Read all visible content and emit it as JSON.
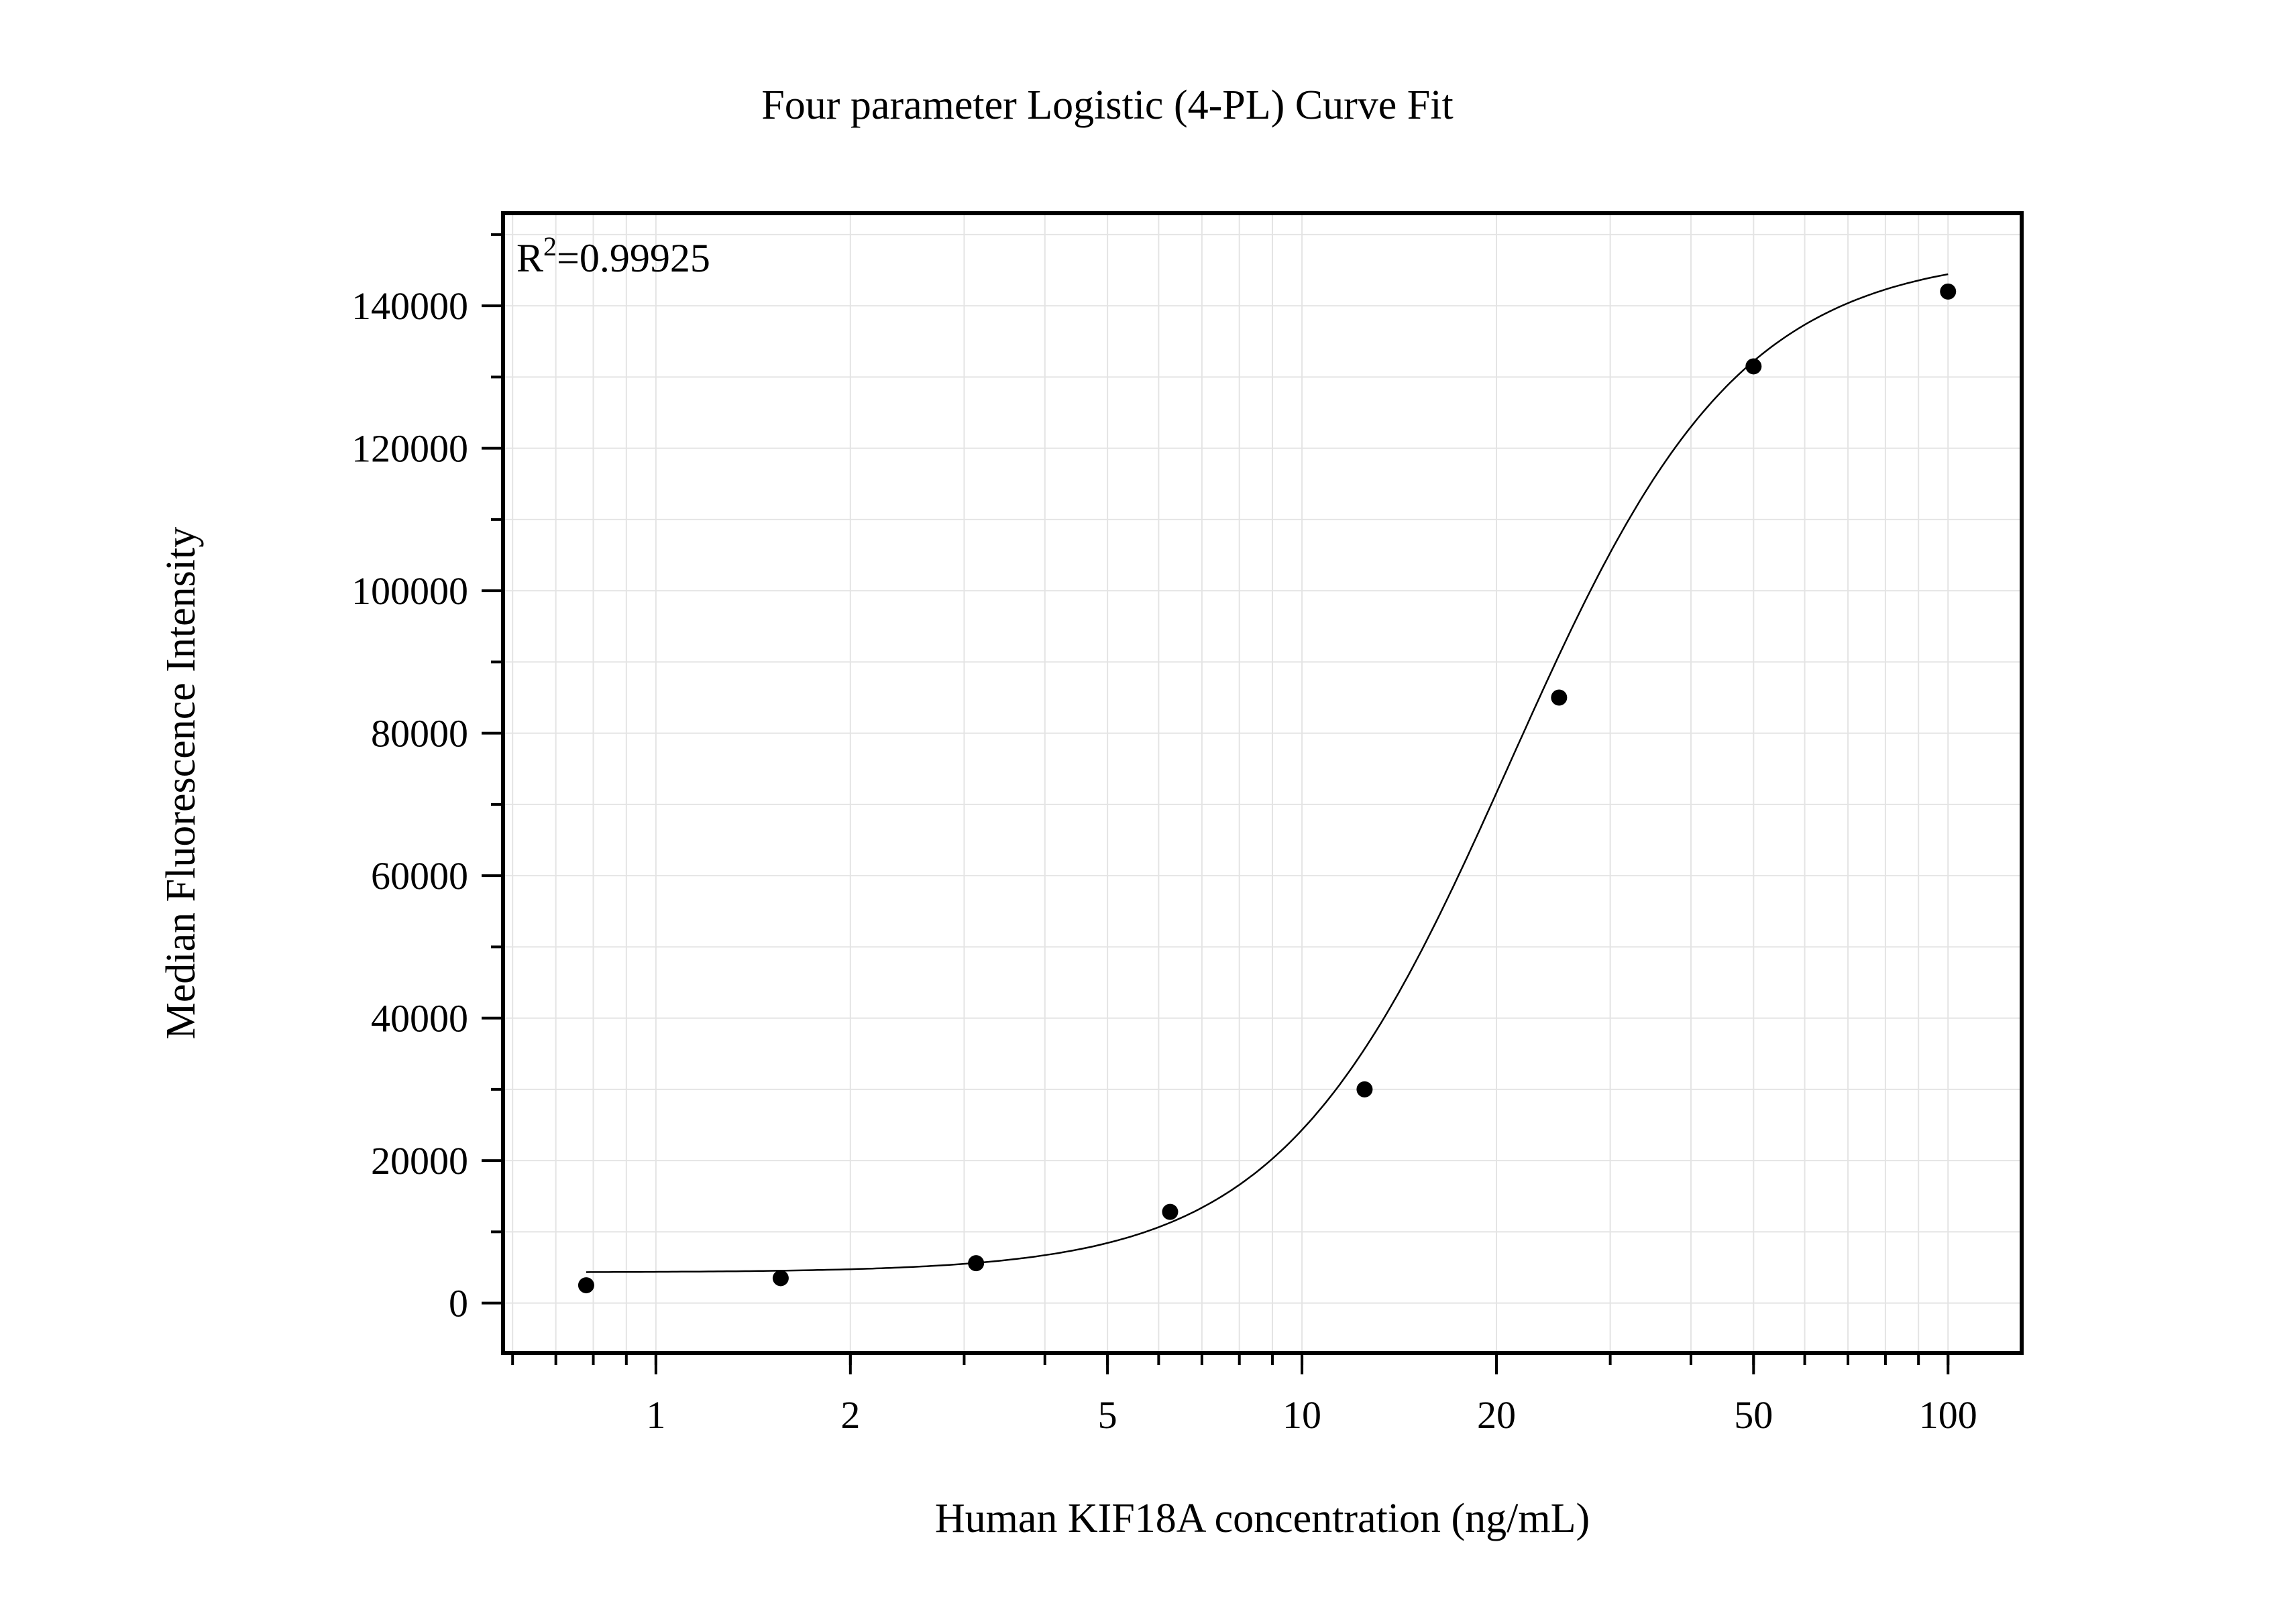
{
  "chart_data": {
    "type": "scatter",
    "title": "Four parameter Logistic (4-PL) Curve Fit",
    "xlabel": "Human KIF18A concentration (ng/mL)",
    "ylabel": "Median Fluorescence Intensity",
    "x_scale": "log",
    "xlim": [
      0.58,
      130
    ],
    "ylim": [
      -7000,
      153000
    ],
    "x_ticks": [
      1,
      2,
      5,
      10,
      20,
      50,
      100
    ],
    "x_tick_labels": [
      "1",
      "2",
      "5",
      "10",
      "20",
      "50",
      "100"
    ],
    "y_ticks": [
      0,
      20000,
      40000,
      60000,
      80000,
      100000,
      120000,
      140000
    ],
    "y_tick_labels": [
      "0",
      "20000",
      "40000",
      "60000",
      "80000",
      "100000",
      "120000",
      "140000"
    ],
    "grid": true,
    "annotation": {
      "prefix": "R",
      "superscript": "2",
      "value": "=0.99925"
    },
    "points": {
      "x": [
        0.78,
        1.56,
        3.13,
        6.25,
        12.5,
        25,
        50,
        100
      ],
      "y": [
        2500,
        3500,
        5600,
        12800,
        30000,
        85000,
        131500,
        142000
      ]
    },
    "fit": {
      "model": "4PL",
      "A": 4300,
      "D": 147500,
      "C": 21,
      "B": 2.45,
      "x_range": [
        0.78,
        100
      ]
    }
  }
}
